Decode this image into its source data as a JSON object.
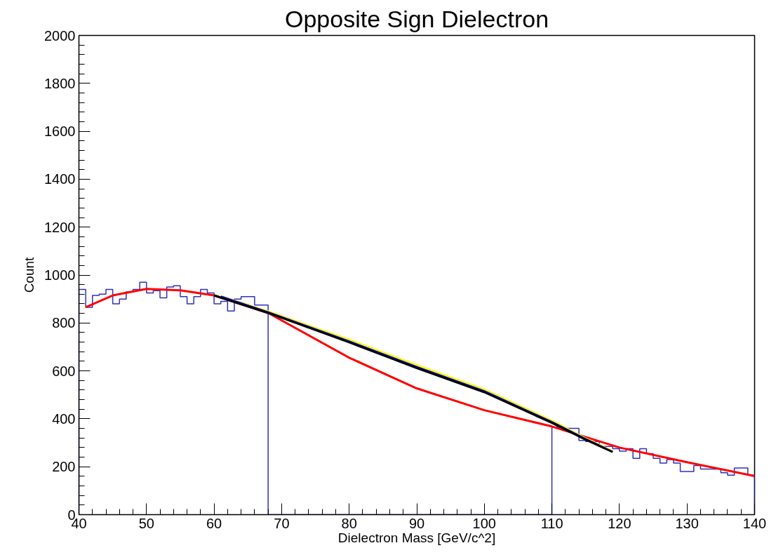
{
  "chart_data": {
    "type": "histogram",
    "title": "Opposite Sign Dielectron",
    "xlabel": "Dielectron Mass [GeV/c^2]",
    "ylabel": "Count",
    "xlim": [
      40,
      140
    ],
    "xticks": [
      40,
      50,
      60,
      70,
      80,
      90,
      100,
      110,
      120,
      130,
      140
    ],
    "ylim": [
      0,
      2000
    ],
    "yticks": [
      0,
      200,
      400,
      600,
      800,
      1000,
      1200,
      1400,
      1600,
      1800,
      2000
    ],
    "grid": false,
    "series": [
      {
        "color": "#3030c0",
        "bins": [
          40,
          41,
          42,
          43,
          44,
          45,
          46,
          47,
          48,
          49,
          50,
          51,
          52,
          53,
          54,
          55,
          56,
          57,
          58,
          59,
          60,
          61,
          62,
          63,
          64,
          65,
          66,
          67,
          68,
          69,
          70,
          71,
          72,
          73,
          74,
          75,
          76,
          77,
          78,
          79,
          80,
          81,
          82,
          83,
          84,
          85,
          86,
          87,
          88,
          89,
          90,
          91,
          92,
          93,
          94,
          95,
          96,
          97,
          98,
          99,
          100,
          101,
          102,
          103,
          104,
          105,
          106,
          107,
          108,
          109,
          110,
          111,
          112,
          113,
          114,
          115,
          116,
          117,
          118,
          119,
          120,
          121,
          122,
          123,
          124,
          125,
          126,
          127,
          128,
          129,
          130,
          131,
          132,
          133,
          134,
          135,
          136,
          137,
          138,
          139,
          140
        ],
        "values": [
          940,
          865,
          915,
          920,
          940,
          880,
          900,
          930,
          940,
          970,
          925,
          935,
          905,
          950,
          955,
          910,
          880,
          910,
          940,
          925,
          880,
          890,
          850,
          900,
          910,
          910,
          875,
          875,
          0,
          0,
          0,
          0,
          0,
          0,
          0,
          0,
          0,
          0,
          0,
          0,
          0,
          0,
          0,
          0,
          0,
          0,
          0,
          0,
          0,
          0,
          0,
          0,
          0,
          0,
          0,
          0,
          0,
          0,
          0,
          0,
          0,
          0,
          0,
          0,
          0,
          0,
          0,
          0,
          0,
          0,
          365,
          365,
          360,
          360,
          310,
          305,
          305,
          285,
          285,
          275,
          265,
          275,
          235,
          275,
          255,
          235,
          215,
          230,
          215,
          180,
          180,
          205,
          190,
          190,
          190,
          175,
          165,
          195,
          195,
          165
        ]
      },
      {
        "type": "line",
        "color": "#ff0000",
        "x": [
          41,
          45,
          50,
          55,
          60,
          68,
          80,
          90,
          100,
          110,
          120,
          130,
          140
        ],
        "values": [
          866,
          915,
          942,
          936,
          915,
          842,
          655,
          527,
          436,
          368,
          280,
          219,
          161
        ]
      },
      {
        "type": "line",
        "color": "#ffff00",
        "x": [
          61,
          68,
          80,
          90,
          100,
          110,
          115,
          119
        ],
        "values": [
          912,
          848,
          730,
          624,
          522,
          392,
          318,
          265
        ]
      },
      {
        "type": "line",
        "color": "#0000ff",
        "x": [
          61,
          68,
          80,
          90,
          100,
          110,
          115,
          118
        ],
        "values": [
          910,
          844,
          723,
          616,
          515,
          386,
          315,
          275
        ]
      },
      {
        "type": "line",
        "color": "#000000",
        "x": [
          60,
          68,
          80,
          90,
          100,
          110,
          115,
          119
        ],
        "values": [
          915,
          842,
          719,
          612,
          511,
          383,
          313,
          262
        ]
      }
    ]
  }
}
